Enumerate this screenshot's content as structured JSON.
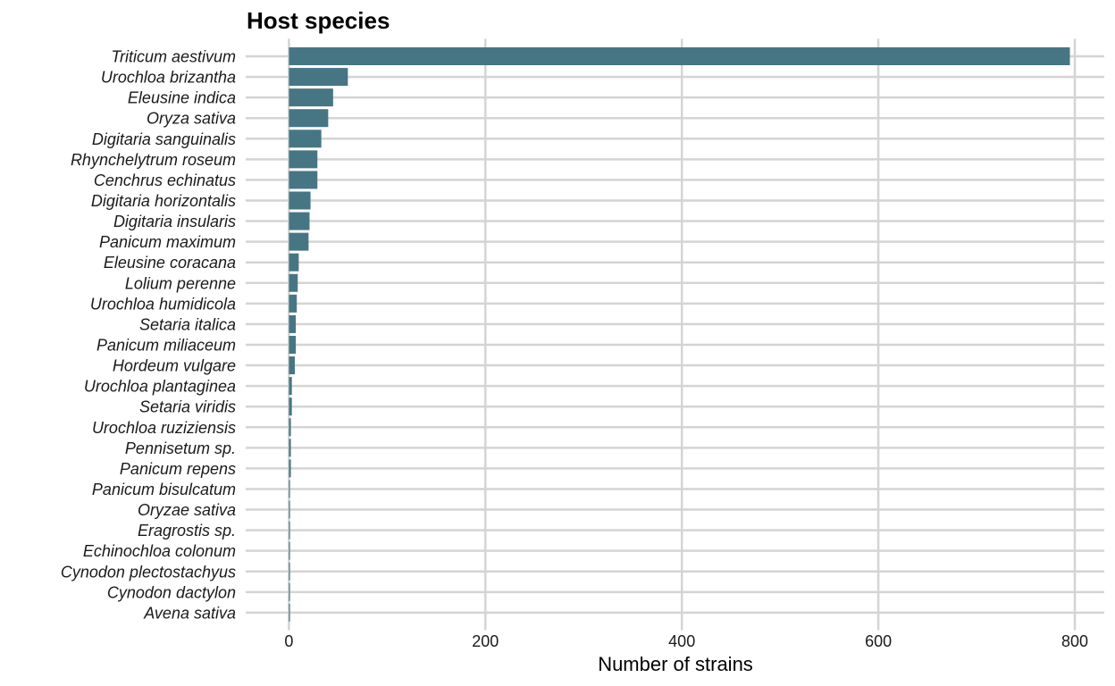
{
  "chart_data": {
    "type": "bar",
    "orientation": "horizontal",
    "title": "Host species",
    "xlabel": "Number of strains",
    "ylabel": "",
    "xlim": [
      -44,
      830
    ],
    "xticks": [
      0,
      200,
      400,
      600,
      800
    ],
    "grid": true,
    "bar_color": "#467684",
    "categories": [
      "Triticum aestivum",
      "Urochloa brizantha",
      "Eleusine indica",
      "Oryza sativa",
      "Digitaria sanguinalis",
      "Rhynchelytrum roseum",
      "Cenchrus echinatus",
      "Digitaria horizontalis",
      "Digitaria insularis",
      "Panicum maximum",
      "Eleusine coracana",
      "Lolium perenne",
      "Urochloa humidicola",
      "Setaria italica",
      "Panicum miliaceum",
      "Hordeum vulgare",
      "Urochloa plantaginea",
      "Setaria viridis",
      "Urochloa ruziziensis",
      "Pennisetum sp.",
      "Panicum repens",
      "Panicum bisulcatum",
      "Oryzae sativa",
      "Eragrostis sp.",
      "Echinochloa colonum",
      "Cynodon plectostachyus",
      "Cynodon dactylon",
      "Avena sativa"
    ],
    "values": [
      795,
      60,
      45,
      40,
      33,
      29,
      29,
      22,
      21,
      20,
      10,
      9,
      8,
      7,
      7,
      6,
      3,
      3,
      2,
      2,
      2,
      1,
      1,
      1,
      1,
      1,
      1,
      1
    ]
  }
}
